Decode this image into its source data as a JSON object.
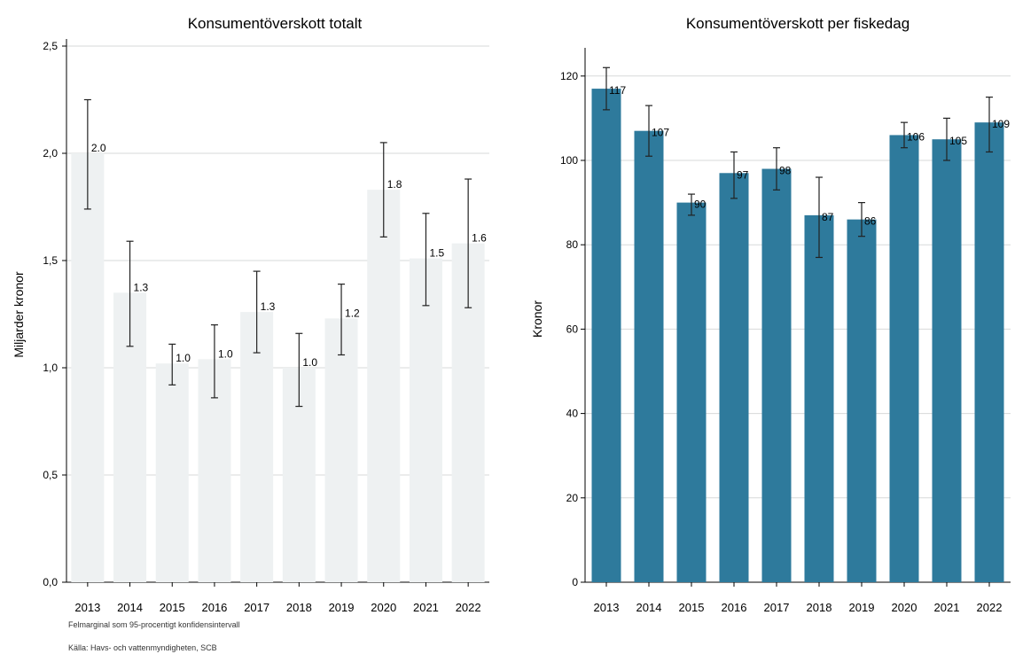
{
  "footnotes": {
    "margin_note": "Felmarginal som 95-procentigt konfidensintervall",
    "source": "Källa: Havs- och vattenmyndigheten, SCB"
  },
  "chart_data": [
    {
      "type": "bar",
      "title": "Konsumentöverskott totalt",
      "xlabel": "",
      "ylabel": "Miljarder kronor",
      "categories": [
        "2013",
        "2014",
        "2015",
        "2016",
        "2017",
        "2018",
        "2019",
        "2020",
        "2021",
        "2022"
      ],
      "values": [
        2.0,
        1.35,
        1.02,
        1.04,
        1.26,
        1.0,
        1.23,
        1.83,
        1.51,
        1.58
      ],
      "value_labels": [
        "2.0",
        "1.3",
        "1.0",
        "1.0",
        "1.3",
        "1.0",
        "1.2",
        "1.8",
        "1.5",
        "1.6"
      ],
      "error_low": [
        1.74,
        1.1,
        0.92,
        0.86,
        1.07,
        0.82,
        1.06,
        1.61,
        1.29,
        1.28
      ],
      "error_high": [
        2.25,
        1.59,
        1.11,
        1.2,
        1.45,
        1.16,
        1.39,
        2.05,
        1.72,
        1.88
      ],
      "ylim": [
        0,
        2.5
      ],
      "yticks": [
        0,
        0.5,
        1.0,
        1.5,
        2.0,
        2.5
      ],
      "ytick_labels": [
        "0,0",
        "0,5",
        "1,0",
        "1,5",
        "2,0",
        "2,5"
      ],
      "bar_color": "#eef1f2",
      "grid": true,
      "legend": "none"
    },
    {
      "type": "bar",
      "title": "Konsumentöverskott per fiskedag",
      "xlabel": "",
      "ylabel": "Kronor",
      "categories": [
        "2013",
        "2014",
        "2015",
        "2016",
        "2017",
        "2018",
        "2019",
        "2020",
        "2021",
        "2022"
      ],
      "values": [
        117,
        107,
        90,
        97,
        98,
        87,
        86,
        106,
        105,
        109
      ],
      "value_labels": [
        "117",
        "107",
        "90",
        "97",
        "98",
        "87",
        "86",
        "106",
        "105",
        "109"
      ],
      "error_low": [
        112,
        101,
        87,
        91,
        93,
        77,
        82,
        103,
        100,
        102
      ],
      "error_high": [
        122,
        113,
        92,
        102,
        103,
        96,
        90,
        109,
        110,
        115
      ],
      "ylim": [
        0,
        125
      ],
      "yticks": [
        0,
        20,
        40,
        60,
        80,
        100,
        120
      ],
      "ytick_labels": [
        "0",
        "20",
        "40",
        "60",
        "80",
        "100",
        "120"
      ],
      "bar_color": "#2e7a9c",
      "grid": true,
      "legend": "none"
    }
  ]
}
